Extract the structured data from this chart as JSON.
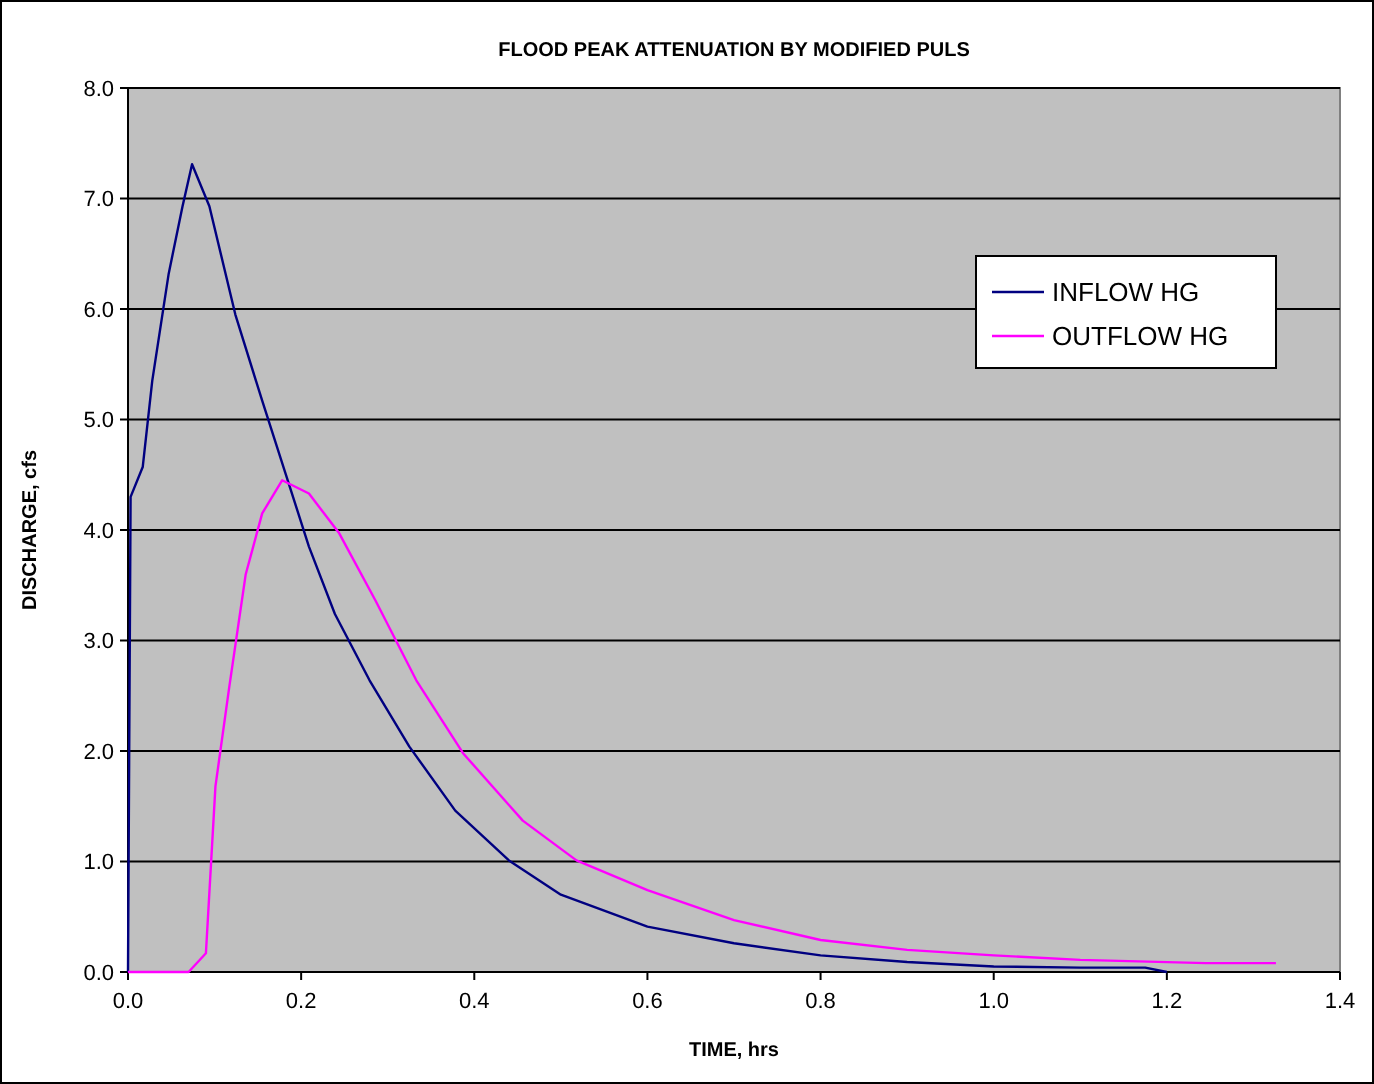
{
  "chart_data": {
    "type": "line",
    "title": "FLOOD PEAK ATTENUATION BY MODIFIED PULS",
    "xlabel": "TIME, hrs",
    "ylabel": "DISCHARGE, cfs",
    "xlim": [
      0,
      1.4
    ],
    "xticks": [
      {
        "value": 0,
        "label": "0.0"
      },
      {
        "value": 0.2,
        "label": "0.2"
      },
      {
        "value": 0.4,
        "label": "0.4"
      },
      {
        "value": 0.6,
        "label": "0.6"
      },
      {
        "value": 0.8,
        "label": "0.8"
      },
      {
        "value": 1,
        "label": "1.0"
      },
      {
        "value": 1.2,
        "label": "1.2"
      },
      {
        "value": 1.4,
        "label": "1.4"
      }
    ],
    "ylim": [
      0,
      8
    ],
    "yticks": [
      {
        "value": 0,
        "label": "0.0"
      },
      {
        "value": 1,
        "label": "1.0"
      },
      {
        "value": 2,
        "label": "2.0"
      },
      {
        "value": 3,
        "label": "3.0"
      },
      {
        "value": 4,
        "label": "4.0"
      },
      {
        "value": 5,
        "label": "5.0"
      },
      {
        "value": 6,
        "label": "6.0"
      },
      {
        "value": 7,
        "label": "7.0"
      },
      {
        "value": 8,
        "label": "8.0"
      }
    ],
    "grid": "y",
    "legend": "top right",
    "marker": "none",
    "line_style": "solid",
    "series": [
      {
        "name": "INFLOW HG",
        "color": "#000080",
        "x": [
          0,
          0.003,
          0.017,
          0.028,
          0.047,
          0.063,
          0.074,
          0.094,
          0.124,
          0.155,
          0.182,
          0.209,
          0.239,
          0.279,
          0.325,
          0.378,
          0.44,
          0.5,
          0.6,
          0.7,
          0.8,
          0.9,
          1.0,
          1.1,
          1.175,
          1.2
        ],
        "values": [
          0,
          4.3,
          4.57,
          5.35,
          6.32,
          6.93,
          7.31,
          6.93,
          5.95,
          5.17,
          4.51,
          3.85,
          3.24,
          2.64,
          2.04,
          1.46,
          1.01,
          0.7,
          0.41,
          0.26,
          0.15,
          0.09,
          0.05,
          0.04,
          0.04,
          0
        ]
      },
      {
        "name": "OUTFLOW HG",
        "color": "#ff00ff",
        "x": [
          0,
          0.07,
          0.09,
          0.101,
          0.117,
          0.136,
          0.155,
          0.178,
          0.209,
          0.244,
          0.286,
          0.333,
          0.387,
          0.456,
          0.518,
          0.6,
          0.7,
          0.8,
          0.9,
          1.0,
          1.1,
          1.245,
          1.326
        ],
        "values": [
          0,
          0,
          0.17,
          1.68,
          2.58,
          3.6,
          4.15,
          4.45,
          4.33,
          3.97,
          3.36,
          2.64,
          1.98,
          1.37,
          1.01,
          0.74,
          0.47,
          0.29,
          0.2,
          0.15,
          0.11,
          0.08,
          0.08
        ]
      }
    ]
  }
}
